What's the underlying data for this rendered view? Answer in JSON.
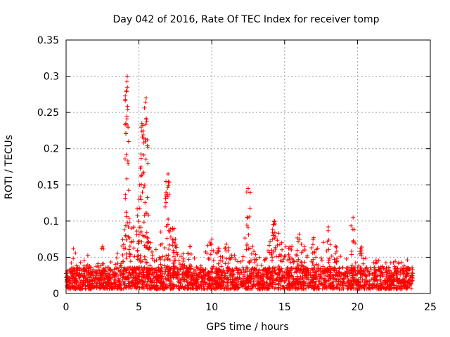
{
  "chart_data": {
    "type": "scatter",
    "title": "Day 042 of 2016, Rate Of TEC Index for receiver tomp",
    "xlabel": "GPS time / hours",
    "ylabel": "ROTI / TECUs",
    "xlim": [
      0,
      25
    ],
    "ylim": [
      0,
      0.35
    ],
    "xticks": [
      "0",
      "5",
      "10",
      "15",
      "20",
      "25"
    ],
    "yticks": [
      "0",
      "0.05",
      "0.1",
      "0.15",
      "0.2",
      "0.25",
      "0.3",
      "0.35"
    ],
    "grid": true,
    "marker": "+",
    "color": "#ff0000",
    "data_extent": [
      0,
      23.8
    ],
    "envelope": [
      [
        0.0,
        0.03
      ],
      [
        0.3,
        0.035
      ],
      [
        0.5,
        0.062
      ],
      [
        0.8,
        0.04
      ],
      [
        1.0,
        0.045
      ],
      [
        1.5,
        0.053
      ],
      [
        2.0,
        0.038
      ],
      [
        2.5,
        0.065
      ],
      [
        3.0,
        0.048
      ],
      [
        3.5,
        0.058
      ],
      [
        4.0,
        0.088
      ],
      [
        4.2,
        0.3
      ],
      [
        4.5,
        0.09
      ],
      [
        5.0,
        0.13
      ],
      [
        5.2,
        0.235
      ],
      [
        5.5,
        0.27
      ],
      [
        5.8,
        0.07
      ],
      [
        6.0,
        0.055
      ],
      [
        6.5,
        0.085
      ],
      [
        7.0,
        0.165
      ],
      [
        7.3,
        0.09
      ],
      [
        7.5,
        0.075
      ],
      [
        8.0,
        0.058
      ],
      [
        8.5,
        0.065
      ],
      [
        9.0,
        0.045
      ],
      [
        9.5,
        0.06
      ],
      [
        10.0,
        0.075
      ],
      [
        10.5,
        0.062
      ],
      [
        11.0,
        0.068
      ],
      [
        11.5,
        0.06
      ],
      [
        12.0,
        0.05
      ],
      [
        12.5,
        0.145
      ],
      [
        12.8,
        0.065
      ],
      [
        13.0,
        0.055
      ],
      [
        13.5,
        0.06
      ],
      [
        14.0,
        0.072
      ],
      [
        14.3,
        0.1
      ],
      [
        14.8,
        0.07
      ],
      [
        15.5,
        0.065
      ],
      [
        16.0,
        0.082
      ],
      [
        16.5,
        0.06
      ],
      [
        17.0,
        0.077
      ],
      [
        17.5,
        0.06
      ],
      [
        18.0,
        0.092
      ],
      [
        18.5,
        0.065
      ],
      [
        19.0,
        0.048
      ],
      [
        19.5,
        0.05
      ],
      [
        19.7,
        0.105
      ],
      [
        20.0,
        0.055
      ],
      [
        20.3,
        0.064
      ],
      [
        21.0,
        0.05
      ],
      [
        22.0,
        0.045
      ],
      [
        23.0,
        0.045
      ],
      [
        23.4,
        0.05
      ],
      [
        23.8,
        0.03
      ]
    ]
  }
}
